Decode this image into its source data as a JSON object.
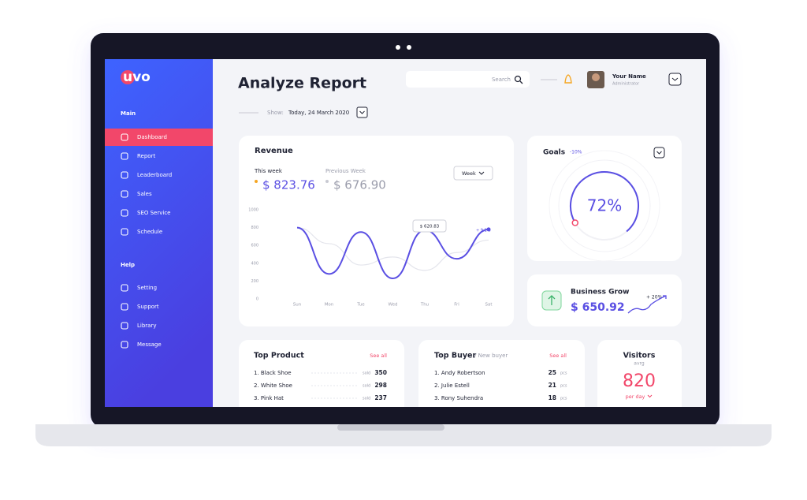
{
  "sidebar": {
    "logo": "uvo",
    "sections": [
      {
        "title": "Main",
        "items": [
          "Dashboard",
          "Report",
          "Leaderboard",
          "Sales",
          "SEO Service",
          "Schedule"
        ]
      },
      {
        "title": "Help",
        "items": [
          "Setting",
          "Support",
          "Library",
          "Message"
        ]
      }
    ]
  },
  "header": {
    "title": "Analyze Report",
    "search": "Search",
    "user_name": "Your Name",
    "user_role": "Administrator",
    "show_label": "Show:",
    "date": "Today, 24 March 2020"
  },
  "revenue": {
    "title": "Revenue",
    "this_week_label": "This week",
    "this_week": "$ 823.76",
    "previous_week_label": "Previous Week",
    "previous_week": "$ 676.90",
    "period": "Week",
    "chart": {
      "type": "line",
      "categories": [
        "Sun",
        "Mon",
        "Tue",
        "Wed",
        "Thu",
        "Fri",
        "Sat"
      ],
      "series": [
        {
          "color": "#e4e5ec",
          "values": [
            800,
            620,
            380,
            470,
            320,
            520,
            660
          ]
        },
        {
          "color": "#5a4fe3",
          "values": [
            800,
            280,
            750,
            230,
            770,
            450,
            780
          ]
        }
      ],
      "ylim": [
        0,
        1000
      ],
      "yticks": [
        0,
        200,
        400,
        600,
        800,
        1000
      ],
      "tooltip": "$ 620.83",
      "annotation": "+ 9.1%"
    }
  },
  "goals": {
    "title": "Goals",
    "change": "-10%",
    "value": 72,
    "value_labels": "72%"
  },
  "business_grow": {
    "title": "Business Grow",
    "amount": "$ 650.92",
    "change": "+ 20%"
  },
  "top_product": {
    "title": "Top Product",
    "link": "See all",
    "rows": [
      [
        "1. Black Shoe",
        "sold",
        350
      ],
      [
        "2. White Shoe",
        "sold",
        298
      ],
      [
        "3. Pink Hat",
        "sold",
        237
      ]
    ]
  },
  "top_buyer": {
    "title": "Top Buyer",
    "subtitle": "/ New buyer",
    "link": "See all",
    "rows": [
      [
        "1. Andy Robertson",
        25,
        "pcs"
      ],
      [
        "2. Julie Estell",
        21,
        "pcs"
      ],
      [
        "3. Rony Suhendra",
        18,
        "pcs"
      ]
    ]
  },
  "visitors": {
    "title": "Visitors",
    "subtitle": "avrg",
    "value": 820,
    "unit": "per day"
  }
}
